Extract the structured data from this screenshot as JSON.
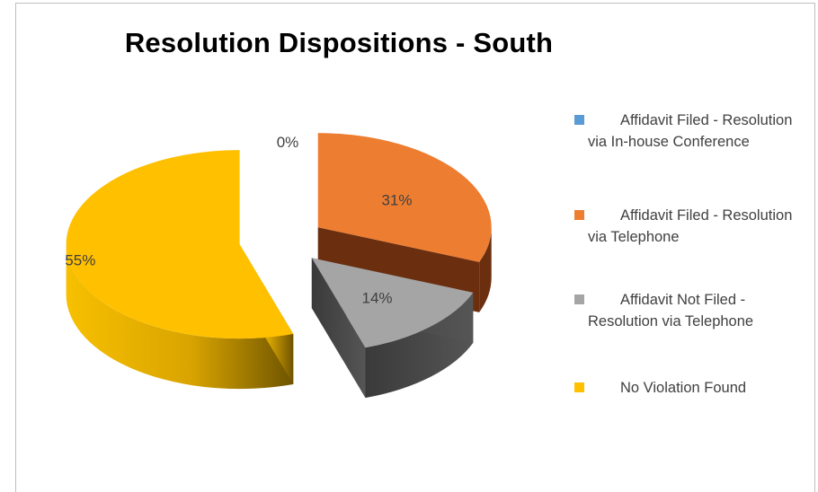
{
  "chart_data": {
    "type": "pie",
    "title": "Resolution Dispositions - South",
    "categories": [
      "Affidavit Filed - Resolution via In-house Conference",
      "Affidavit Filed - Resolution via Telephone",
      "Affidavit Not Filed - Resolution via Telephone",
      "No Violation Found"
    ],
    "values": [
      0,
      31,
      14,
      55
    ],
    "labels": [
      "0%",
      "31%",
      "14%",
      "55%"
    ],
    "colors": [
      "#5b9bd5",
      "#ed7d31",
      "#a5a5a5",
      "#ffc000"
    ],
    "legend_position": "right",
    "style": "3d exploded"
  }
}
